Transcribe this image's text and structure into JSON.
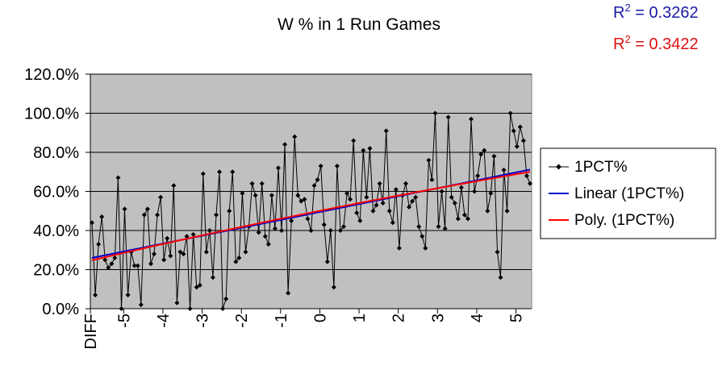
{
  "chart_data": {
    "type": "line",
    "title": "W % in 1 Run Games",
    "xlabel": "",
    "ylabel": "",
    "ylim": [
      0,
      120
    ],
    "xlim": [
      -5.85,
      5.4
    ],
    "y_ticks": [
      "0.0%",
      "20.0%",
      "40.0%",
      "60.0%",
      "80.0%",
      "100.0%",
      "120.0%"
    ],
    "x_ticks": [
      {
        "label": "DIFF",
        "value": -5.85
      },
      {
        "label": "-5",
        "value": -5
      },
      {
        "label": "-4",
        "value": -4
      },
      {
        "label": "-3",
        "value": -3
      },
      {
        "label": "-2",
        "value": -2
      },
      {
        "label": "-1",
        "value": -1
      },
      {
        "label": "0",
        "value": 0
      },
      {
        "label": "1",
        "value": 1
      },
      {
        "label": "2",
        "value": 2
      },
      {
        "label": "3",
        "value": 3
      },
      {
        "label": "4",
        "value": 4
      },
      {
        "label": "5",
        "value": 5
      }
    ],
    "grid": true,
    "legend_position": "right",
    "r2": [
      {
        "label": "R",
        "sup": "2",
        "value": " = 0.3262",
        "color": "#1a1aa6"
      },
      {
        "label": "R",
        "sup": "2",
        "value": " = 0.3422",
        "color": "#e01010"
      }
    ],
    "series": [
      {
        "name": "1PCT%",
        "color": "#000000",
        "marker": "diamond",
        "values": [
          44,
          7,
          33,
          47,
          25,
          21,
          23,
          26,
          67,
          0,
          51,
          7,
          29,
          22,
          22,
          2,
          48,
          51,
          23,
          28,
          48,
          57,
          25,
          36,
          27,
          63,
          3,
          29,
          28,
          37,
          0,
          38,
          11,
          12,
          69,
          29,
          40,
          16,
          48,
          70,
          0,
          5,
          50,
          70,
          24,
          26,
          59,
          29,
          42,
          64,
          58,
          39,
          64,
          37,
          33,
          58,
          41,
          72,
          40,
          84,
          8,
          45,
          88,
          58,
          55,
          56,
          46,
          40,
          63,
          66,
          73,
          43,
          24,
          40,
          11,
          73,
          40,
          42,
          59,
          56,
          86,
          49,
          45,
          81,
          57,
          82,
          50,
          53,
          64,
          54,
          91,
          50,
          44,
          61,
          31,
          58,
          64,
          52,
          55,
          57,
          42,
          37,
          31,
          76,
          66,
          100,
          42,
          60,
          41,
          98,
          57,
          54,
          46,
          62,
          48,
          46,
          97,
          60,
          68,
          79,
          81,
          50,
          59,
          78,
          29,
          16,
          71,
          50,
          100,
          91,
          83,
          93,
          86,
          68,
          64
        ]
      },
      {
        "name": "Linear (1PCT%)",
        "color": "#0000cc",
        "type": "trend",
        "values": []
      },
      {
        "name": "Poly. (1PCT%)",
        "color": "#ff0000",
        "type": "trend",
        "values": []
      }
    ]
  }
}
